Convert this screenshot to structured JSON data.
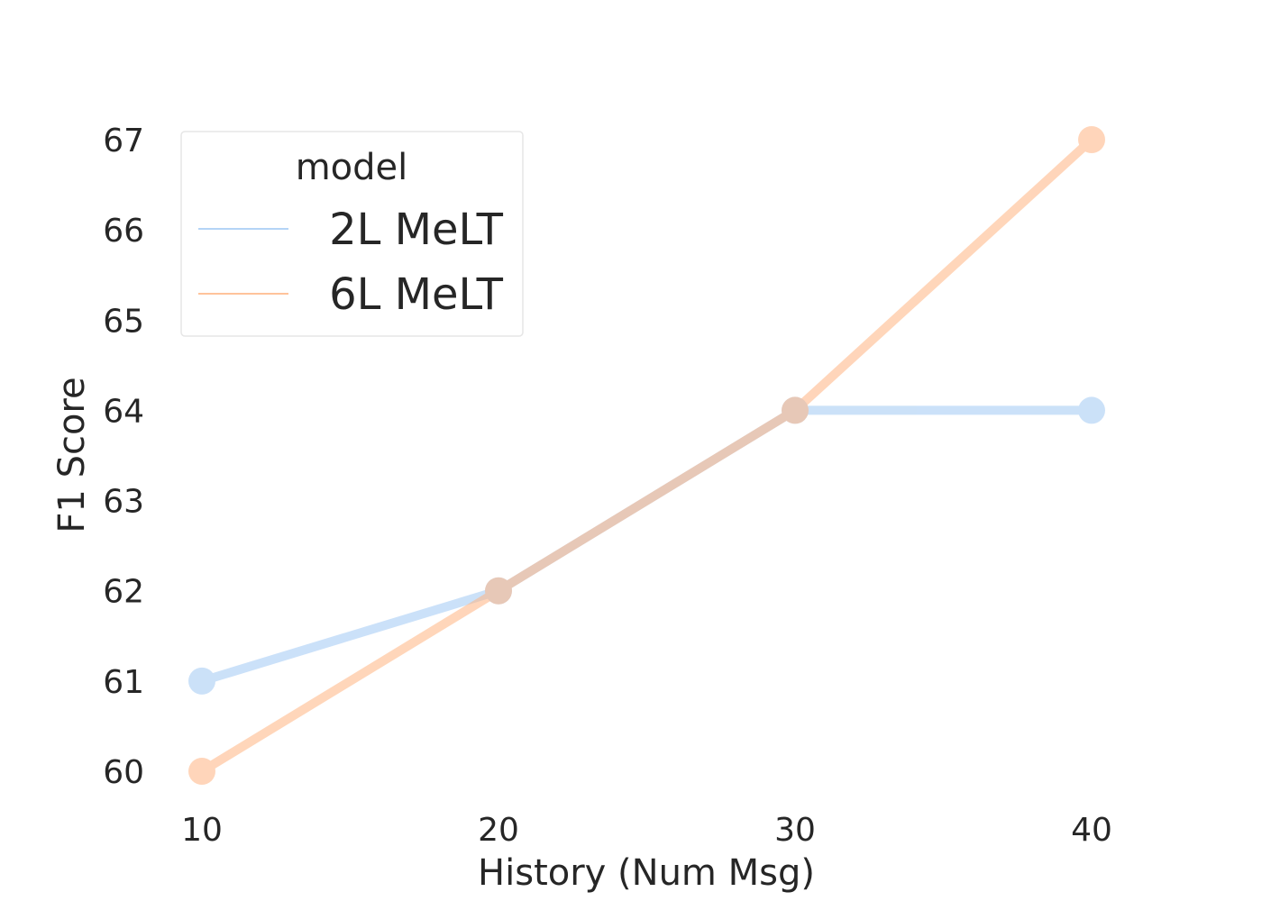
{
  "chart_data": {
    "type": "line",
    "xlabel": "History (Num Msg)",
    "ylabel": "F1 Score",
    "x": [
      10,
      20,
      30,
      40
    ],
    "x_ticks": [
      "10",
      "20",
      "30",
      "40"
    ],
    "y_ticks": [
      "60",
      "61",
      "62",
      "63",
      "64",
      "65",
      "66",
      "67"
    ],
    "xlim": [
      10,
      40
    ],
    "ylim": [
      60,
      67
    ],
    "grid": false,
    "legend": {
      "title": "model",
      "placement": "top-left"
    },
    "series": [
      {
        "name": "2L MeLT",
        "values": [
          61,
          62,
          64,
          64
        ],
        "color": "#a1c9f4"
      },
      {
        "name": "6L MeLT",
        "values": [
          60,
          62,
          64,
          67
        ],
        "color": "#ffb482"
      }
    ]
  }
}
